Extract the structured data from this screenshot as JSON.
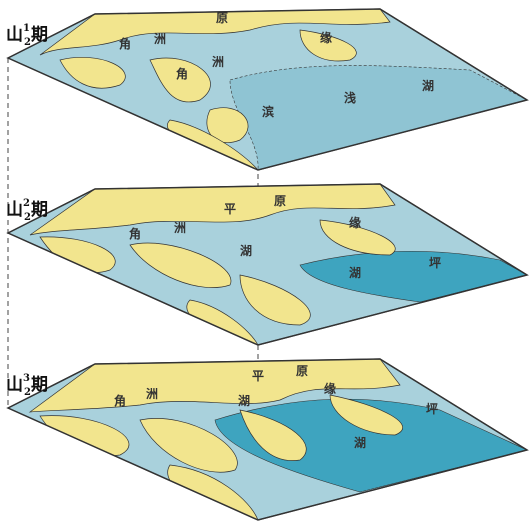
{
  "panels": [
    {
      "heading": {
        "char": "山",
        "subscript": "2",
        "superscript": "1",
        "suffix": "期"
      },
      "map_labels": [
        "角",
        "洲",
        "原",
        "缘",
        "角",
        "洲",
        "浅",
        "湖",
        "滨"
      ]
    },
    {
      "heading": {
        "char": "山",
        "subscript": "2",
        "superscript": "2",
        "suffix": "期"
      },
      "map_labels": [
        "平",
        "原",
        "缘",
        "角",
        "洲",
        "湖",
        "湖",
        "坪"
      ]
    },
    {
      "heading": {
        "char": "山",
        "subscript": "2",
        "superscript": "3",
        "suffix": "期"
      },
      "map_labels": [
        "平",
        "原",
        "缘",
        "角",
        "洲",
        "湖",
        "湖",
        "坪"
      ]
    }
  ]
}
